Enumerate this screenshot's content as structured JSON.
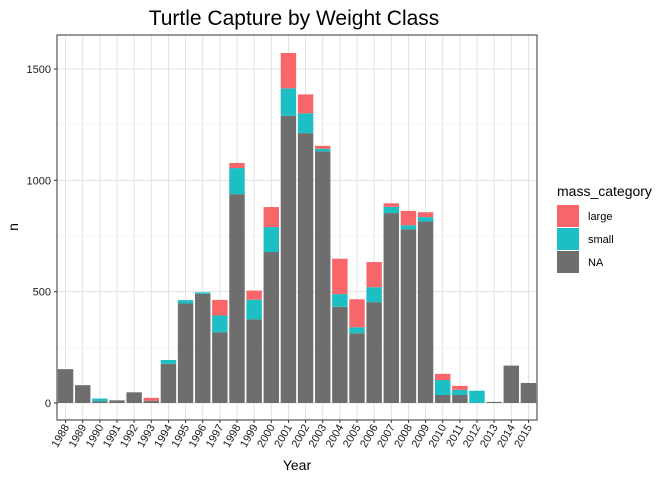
{
  "chart_data": {
    "type": "bar",
    "stacked": true,
    "title": "Turtle Capture by Weight Class",
    "xlabel": "Year",
    "ylabel": "n",
    "ylim": [
      0,
      1600
    ],
    "yticks": [
      0,
      500,
      1000,
      1500
    ],
    "grid": true,
    "legend": {
      "title": "mass_category",
      "position": "right"
    },
    "categories": [
      "1988",
      "1989",
      "1990",
      "1991",
      "1992",
      "1993",
      "1994",
      "1995",
      "1996",
      "1997",
      "1998",
      "1999",
      "2000",
      "2001",
      "2002",
      "2003",
      "2004",
      "2005",
      "2006",
      "2007",
      "2008",
      "2009",
      "2010",
      "2011",
      "2012",
      "2013",
      "2014",
      "2015"
    ],
    "series": [
      {
        "name": "NA",
        "color": "#6e6e6e",
        "values": [
          152,
          80,
          8,
          12,
          48,
          10,
          176,
          447,
          490,
          318,
          938,
          376,
          678,
          1290,
          1212,
          1130,
          432,
          313,
          453,
          853,
          780,
          815,
          36,
          36,
          0,
          5,
          168,
          90
        ]
      },
      {
        "name": "small",
        "color": "#1cbfc4",
        "values": [
          0,
          0,
          12,
          0,
          0,
          0,
          17,
          15,
          7,
          75,
          117,
          88,
          112,
          123,
          89,
          12,
          57,
          27,
          67,
          28,
          18,
          20,
          67,
          23,
          55,
          0,
          0,
          0
        ]
      },
      {
        "name": "large",
        "color": "#f8666a",
        "values": [
          0,
          0,
          0,
          0,
          0,
          13,
          0,
          0,
          0,
          70,
          23,
          41,
          90,
          159,
          85,
          13,
          159,
          126,
          113,
          16,
          65,
          22,
          28,
          18,
          0,
          0,
          0,
          0
        ]
      }
    ],
    "legend_order": [
      "large",
      "small",
      "NA"
    ]
  }
}
